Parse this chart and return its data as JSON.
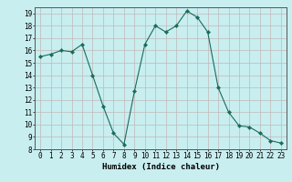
{
  "x": [
    0,
    1,
    2,
    3,
    4,
    5,
    6,
    7,
    8,
    9,
    10,
    11,
    12,
    13,
    14,
    15,
    16,
    17,
    18,
    19,
    20,
    21,
    22,
    23
  ],
  "y": [
    15.5,
    15.7,
    16.0,
    15.9,
    16.5,
    14.0,
    11.5,
    9.3,
    8.4,
    12.7,
    16.5,
    18.0,
    17.5,
    18.0,
    19.2,
    18.7,
    17.5,
    13.0,
    11.0,
    9.9,
    9.8,
    9.3,
    8.7,
    8.5
  ],
  "xlabel": "Humidex (Indice chaleur)",
  "xlim": [
    -0.5,
    23.5
  ],
  "ylim": [
    8,
    19.5
  ],
  "yticks": [
    8,
    9,
    10,
    11,
    12,
    13,
    14,
    15,
    16,
    17,
    18,
    19
  ],
  "xticks": [
    0,
    1,
    2,
    3,
    4,
    5,
    6,
    7,
    8,
    9,
    10,
    11,
    12,
    13,
    14,
    15,
    16,
    17,
    18,
    19,
    20,
    21,
    22,
    23
  ],
  "line_color": "#1a6b5a",
  "marker": "D",
  "marker_size": 2.2,
  "bg_color": "#c8eef0",
  "grid_color": "#c0b8b8",
  "label_fontsize": 6.5,
  "tick_fontsize": 5.5
}
